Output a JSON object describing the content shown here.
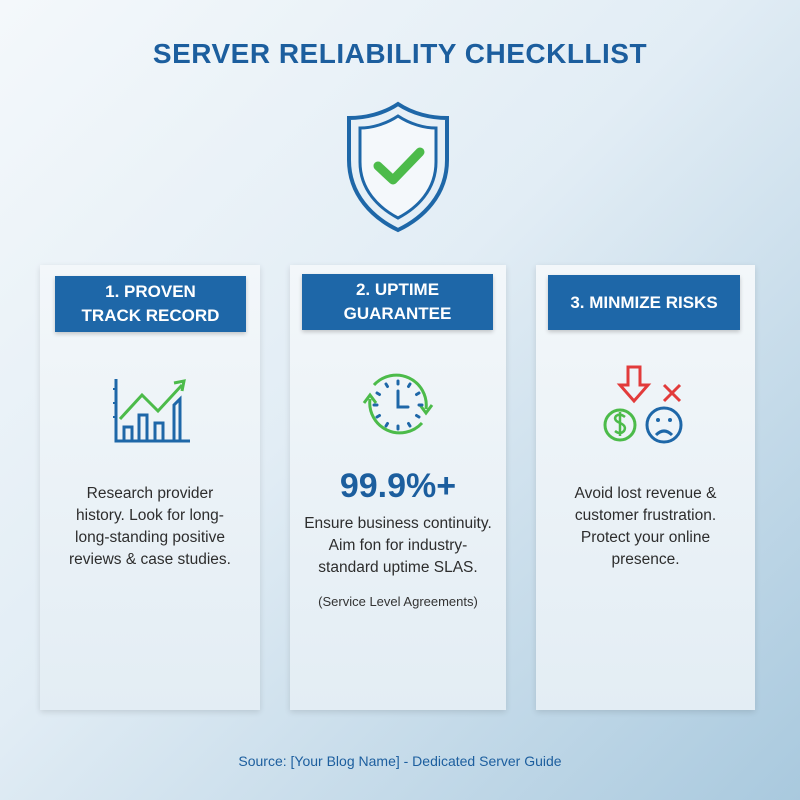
{
  "title": "SERVER RELIABILITY CHECKLLIST",
  "cards": [
    {
      "heading_line1": "1. PROVEN",
      "heading_line2": "TRACK RECORD",
      "icon": "growth-chart-icon",
      "body": "Research provider history. Look for long-long-standing positive reviews & case studies."
    },
    {
      "heading_line1": "2. UPTIME",
      "heading_line2": "GUARANTEE",
      "icon": "clock-refresh-icon",
      "stat": "99.9%+",
      "body": "Ensure business continuity. Aim fon for industry-standard uptime SLAS.",
      "note": "(Service Level Agreements)"
    },
    {
      "heading_line1": "3. MINMIZE RISKS",
      "icon": "risk-icon",
      "body": "Avoid lost revenue & customer frustration. Protect your online presence."
    }
  ],
  "source": "Source: [Your Blog Name] - Dedicated Server Guide",
  "colors": {
    "primary": "#1e67a8",
    "green": "#4cbb4a",
    "red": "#e23b3b"
  }
}
